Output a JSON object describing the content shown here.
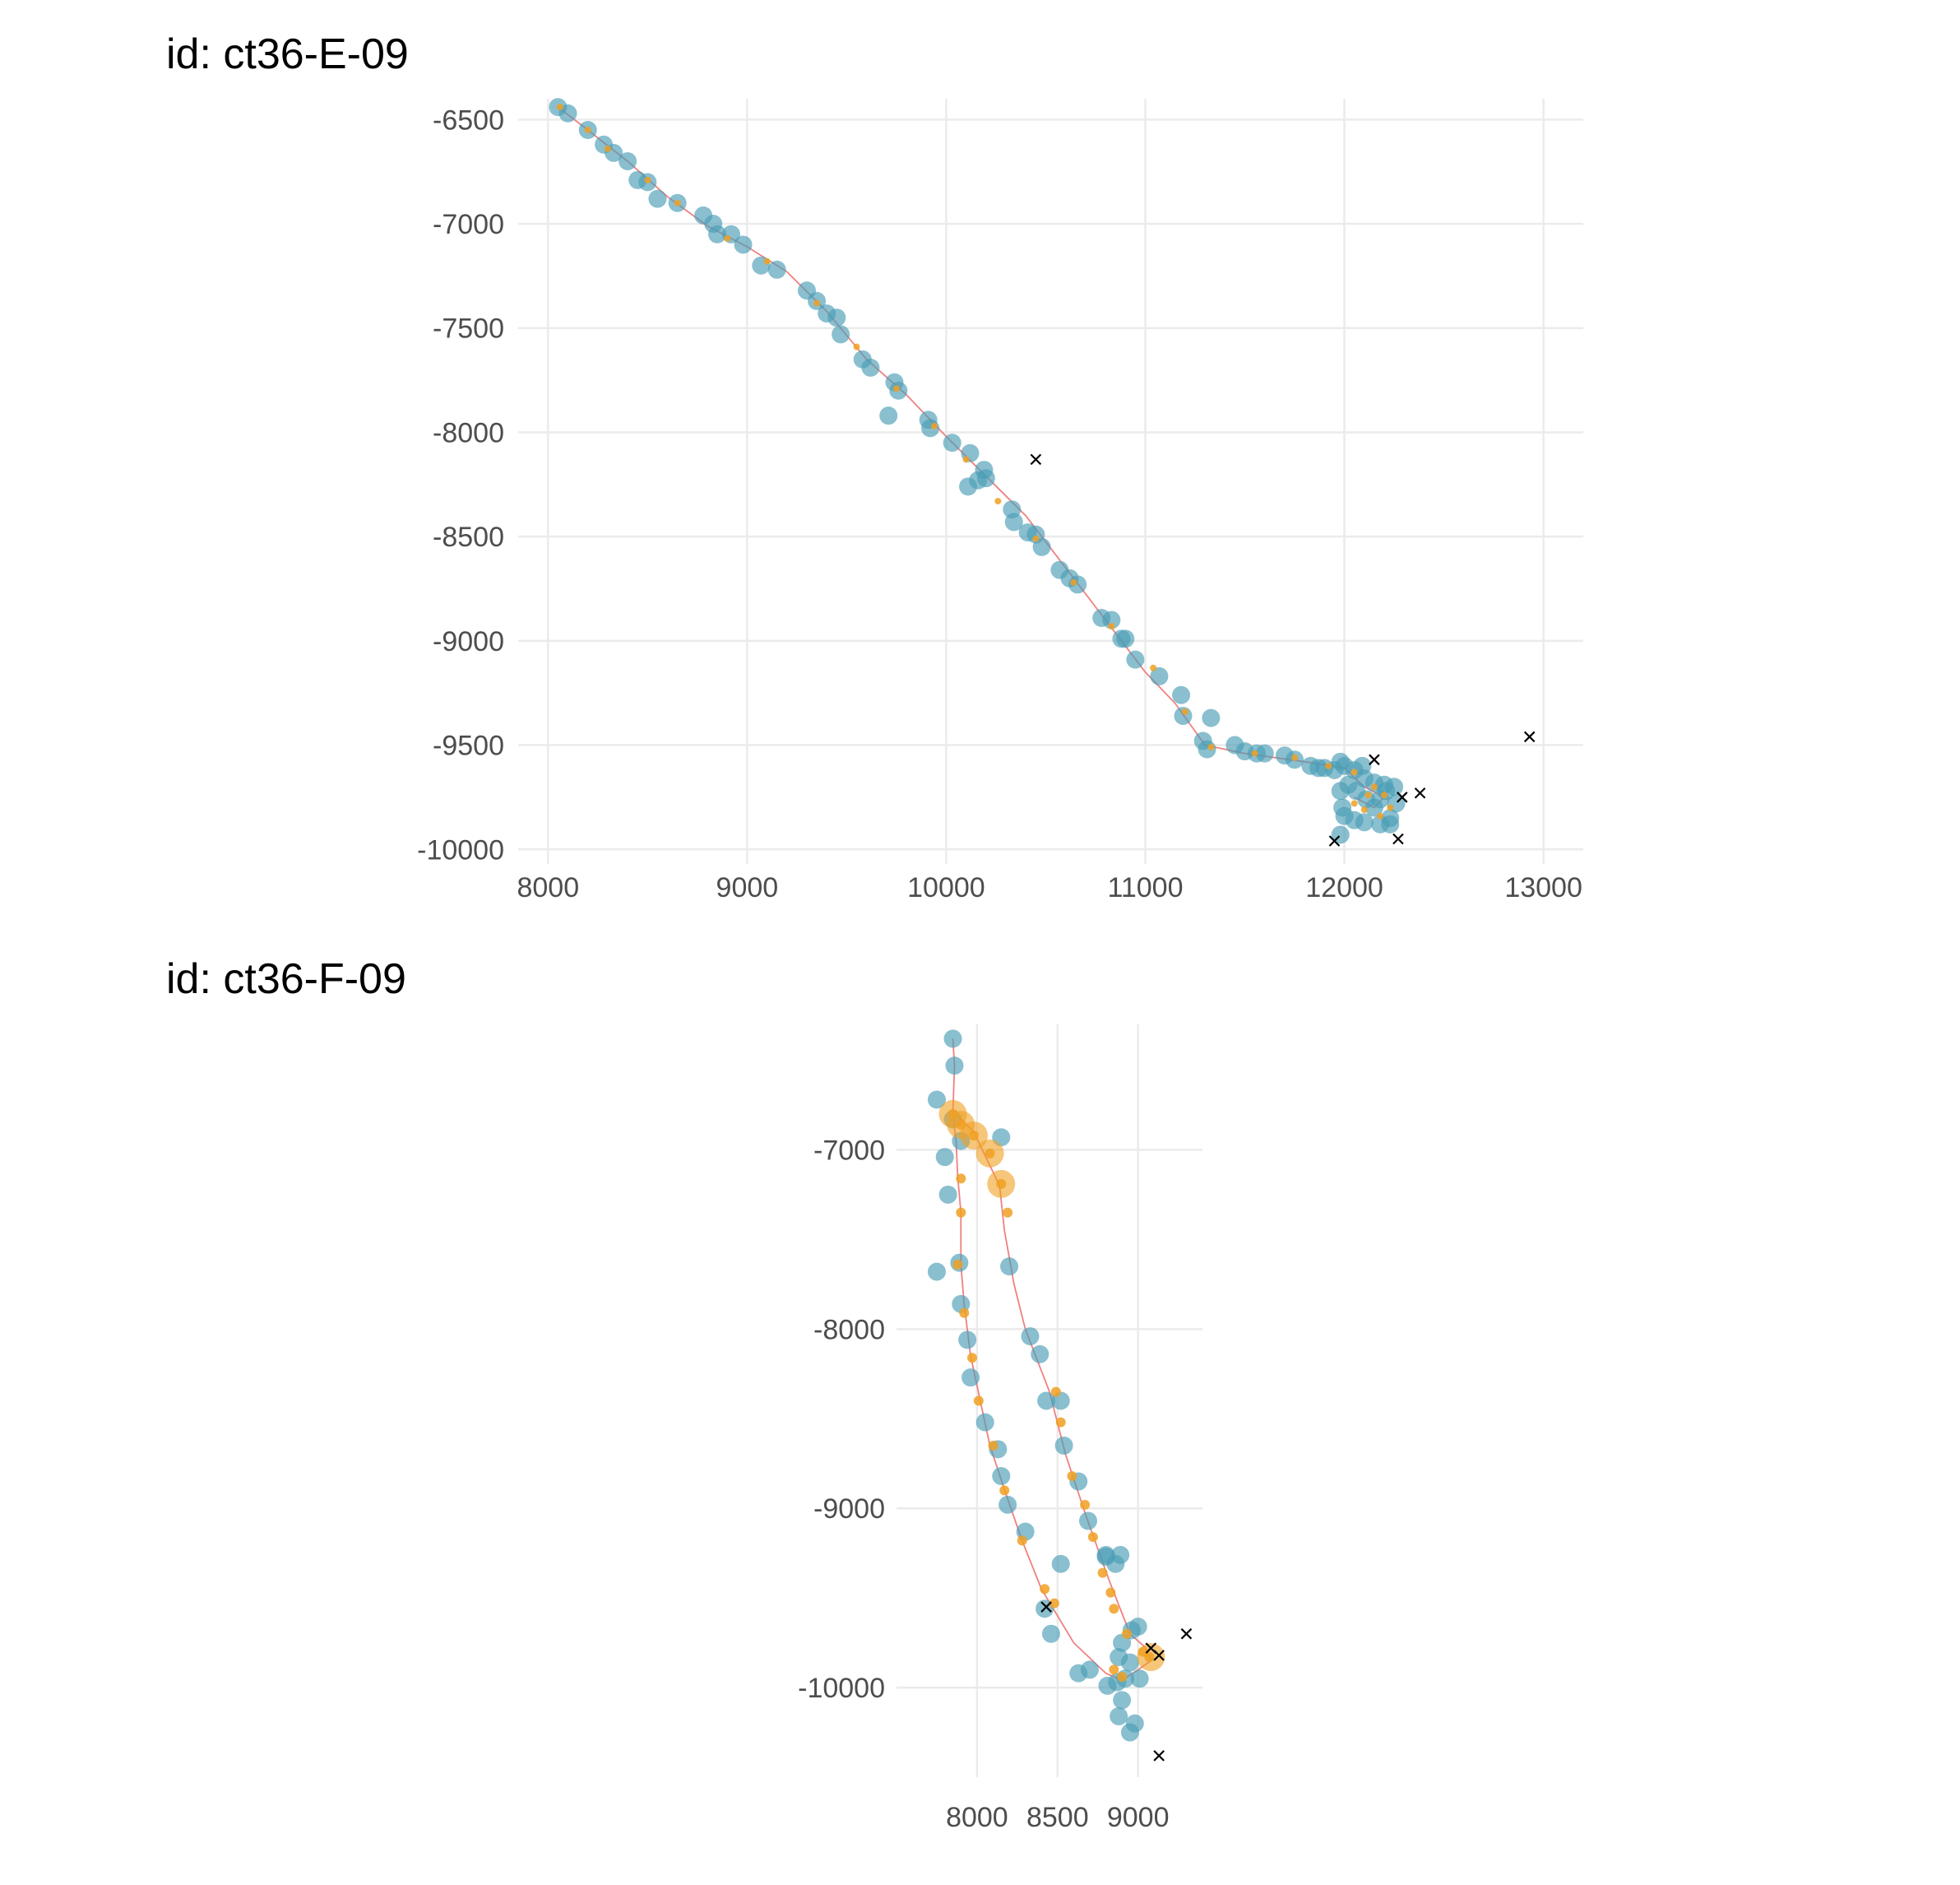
{
  "colors": {
    "background": "#ffffff",
    "grid": "#ebebeb",
    "observed_point": "#4a9db5",
    "estimated_point": "#f0a022",
    "track_line": "#f08080",
    "outlier_mark": "#000000",
    "tick_text": "#4d4d4d"
  },
  "chart_data": [
    {
      "type": "scatter",
      "title": "id: ct36-E-09",
      "xlabel": "",
      "ylabel": "",
      "xlim": [
        7850,
        13200
      ],
      "ylim": [
        -10070,
        -6400
      ],
      "x_ticks": [
        "8000",
        "9000",
        "10000",
        "11000",
        "12000",
        "13000"
      ],
      "y_ticks": [
        "-6500",
        "-7000",
        "-7500",
        "-8000",
        "-8500",
        "-9000",
        "-9500",
        "-10000"
      ],
      "grid": true,
      "legend": "none",
      "track": [
        [
          8050,
          -6440
        ],
        [
          8200,
          -6550
        ],
        [
          8400,
          -6700
        ],
        [
          8600,
          -6870
        ],
        [
          8800,
          -7010
        ],
        [
          9000,
          -7110
        ],
        [
          9200,
          -7230
        ],
        [
          9400,
          -7420
        ],
        [
          9600,
          -7650
        ],
        [
          9800,
          -7820
        ],
        [
          10000,
          -8020
        ],
        [
          10200,
          -8210
        ],
        [
          10400,
          -8400
        ],
        [
          10600,
          -8650
        ],
        [
          10800,
          -8900
        ],
        [
          11000,
          -9150
        ],
        [
          11150,
          -9300
        ],
        [
          11300,
          -9500
        ],
        [
          11500,
          -9540
        ],
        [
          11800,
          -9580
        ],
        [
          12000,
          -9610
        ],
        [
          12100,
          -9700
        ],
        [
          12200,
          -9750
        ],
        [
          12150,
          -9800
        ],
        [
          12050,
          -9750
        ]
      ],
      "observed": [
        [
          8050,
          -6440
        ],
        [
          8100,
          -6470
        ],
        [
          8200,
          -6550
        ],
        [
          8280,
          -6620
        ],
        [
          8330,
          -6660
        ],
        [
          8400,
          -6700
        ],
        [
          8450,
          -6790
        ],
        [
          8500,
          -6800
        ],
        [
          8550,
          -6880
        ],
        [
          8650,
          -6900
        ],
        [
          8780,
          -6960
        ],
        [
          8830,
          -7000
        ],
        [
          8850,
          -7050
        ],
        [
          8920,
          -7050
        ],
        [
          8980,
          -7100
        ],
        [
          9070,
          -7200
        ],
        [
          9150,
          -7220
        ],
        [
          9300,
          -7320
        ],
        [
          9350,
          -7370
        ],
        [
          9400,
          -7430
        ],
        [
          9450,
          -7450
        ],
        [
          9470,
          -7530
        ],
        [
          9580,
          -7650
        ],
        [
          9620,
          -7690
        ],
        [
          9710,
          -7920
        ],
        [
          9740,
          -7760
        ],
        [
          9760,
          -7800
        ],
        [
          9910,
          -7940
        ],
        [
          9920,
          -7980
        ],
        [
          10030,
          -8050
        ],
        [
          10120,
          -8100
        ],
        [
          10110,
          -8260
        ],
        [
          10160,
          -8230
        ],
        [
          10190,
          -8180
        ],
        [
          10200,
          -8220
        ],
        [
          10330,
          -8370
        ],
        [
          10340,
          -8430
        ],
        [
          10410,
          -8480
        ],
        [
          10450,
          -8490
        ],
        [
          10480,
          -8550
        ],
        [
          10570,
          -8660
        ],
        [
          10620,
          -8700
        ],
        [
          10660,
          -8730
        ],
        [
          10780,
          -8890
        ],
        [
          10830,
          -8900
        ],
        [
          10880,
          -8990
        ],
        [
          10900,
          -8990
        ],
        [
          10950,
          -9090
        ],
        [
          11070,
          -9170
        ],
        [
          11180,
          -9260
        ],
        [
          11190,
          -9360
        ],
        [
          11290,
          -9480
        ],
        [
          11310,
          -9520
        ],
        [
          11330,
          -9370
        ],
        [
          11450,
          -9500
        ],
        [
          11500,
          -9530
        ],
        [
          11560,
          -9540
        ],
        [
          11600,
          -9540
        ],
        [
          11700,
          -9550
        ],
        [
          11750,
          -9570
        ],
        [
          11830,
          -9600
        ],
        [
          11870,
          -9610
        ],
        [
          11900,
          -9610
        ],
        [
          11950,
          -9620
        ],
        [
          11980,
          -9580
        ],
        [
          12000,
          -9600
        ],
        [
          12050,
          -9620
        ],
        [
          12090,
          -9600
        ],
        [
          12100,
          -9660
        ],
        [
          12150,
          -9680
        ],
        [
          12200,
          -9690
        ],
        [
          12250,
          -9700
        ],
        [
          12260,
          -9780
        ],
        [
          12230,
          -9850
        ],
        [
          12180,
          -9880
        ],
        [
          12100,
          -9870
        ],
        [
          12050,
          -9860
        ],
        [
          12000,
          -9840
        ],
        [
          11990,
          -9800
        ],
        [
          11980,
          -9720
        ],
        [
          12020,
          -9690
        ],
        [
          12060,
          -9720
        ],
        [
          12110,
          -9760
        ],
        [
          12150,
          -9800
        ],
        [
          12180,
          -9760
        ],
        [
          12210,
          -9720
        ],
        [
          11980,
          -9930
        ],
        [
          12230,
          -9880
        ]
      ],
      "estimated": [
        [
          8060,
          -6440
        ],
        [
          8200,
          -6550
        ],
        [
          8300,
          -6640
        ],
        [
          8500,
          -6790
        ],
        [
          8650,
          -6900
        ],
        [
          8900,
          -7070
        ],
        [
          9100,
          -7180
        ],
        [
          9350,
          -7380
        ],
        [
          9550,
          -7590
        ],
        [
          9750,
          -7790
        ],
        [
          9940,
          -7970
        ],
        [
          10100,
          -8130
        ],
        [
          10260,
          -8330
        ],
        [
          10450,
          -8510
        ],
        [
          10640,
          -8720
        ],
        [
          10830,
          -8930
        ],
        [
          11040,
          -9130
        ],
        [
          11200,
          -9340
        ],
        [
          11330,
          -9510
        ],
        [
          11550,
          -9540
        ],
        [
          11750,
          -9560
        ],
        [
          11920,
          -9600
        ],
        [
          12050,
          -9630
        ],
        [
          12150,
          -9700
        ],
        [
          12200,
          -9740
        ],
        [
          12230,
          -9800
        ],
        [
          12180,
          -9840
        ],
        [
          12100,
          -9810
        ],
        [
          12050,
          -9780
        ],
        [
          12120,
          -9740
        ]
      ],
      "outliers": [
        [
          10450,
          -8130
        ],
        [
          12150,
          -9570
        ],
        [
          12380,
          -9730
        ],
        [
          12290,
          -9750
        ],
        [
          12270,
          -9950
        ],
        [
          11950,
          -9960
        ],
        [
          12930,
          -9460
        ]
      ]
    },
    {
      "type": "scatter",
      "title": "id: ct36-F-09",
      "xlabel": "",
      "ylabel": "",
      "xlim": [
        7500,
        9400
      ],
      "ylim": [
        -10500,
        -6300
      ],
      "x_ticks": [
        "8000",
        "8500",
        "9000"
      ],
      "y_ticks": [
        "-7000",
        "-8000",
        "-9000",
        "-10000"
      ],
      "grid": true,
      "legend": "none",
      "track": [
        [
          7850,
          -6380
        ],
        [
          7860,
          -6530
        ],
        [
          7850,
          -6800
        ],
        [
          7870,
          -6950
        ],
        [
          7880,
          -7150
        ],
        [
          7900,
          -7350
        ],
        [
          7900,
          -7640
        ],
        [
          7920,
          -7860
        ],
        [
          7960,
          -8150
        ],
        [
          8020,
          -8400
        ],
        [
          8080,
          -8650
        ],
        [
          8180,
          -8920
        ],
        [
          8280,
          -9180
        ],
        [
          8400,
          -9450
        ],
        [
          8600,
          -9750
        ],
        [
          8800,
          -9920
        ],
        [
          8900,
          -9960
        ],
        [
          9000,
          -9900
        ],
        [
          9080,
          -9850
        ],
        [
          9050,
          -9780
        ],
        [
          8950,
          -9700
        ],
        [
          8820,
          -9400
        ],
        [
          8680,
          -9050
        ],
        [
          8550,
          -8700
        ],
        [
          8450,
          -8350
        ],
        [
          8300,
          -8000
        ],
        [
          8230,
          -7750
        ],
        [
          8170,
          -7450
        ],
        [
          8140,
          -7200
        ],
        [
          8060,
          -7050
        ],
        [
          7980,
          -6900
        ],
        [
          7870,
          -6800
        ]
      ],
      "observed": [
        [
          7850,
          -6380
        ],
        [
          7860,
          -6530
        ],
        [
          7750,
          -6720
        ],
        [
          7850,
          -6830
        ],
        [
          7800,
          -7040
        ],
        [
          7900,
          -6950
        ],
        [
          8150,
          -6930
        ],
        [
          7820,
          -7250
        ],
        [
          7750,
          -7680
        ],
        [
          7890,
          -7630
        ],
        [
          7900,
          -7860
        ],
        [
          7940,
          -8060
        ],
        [
          7960,
          -8270
        ],
        [
          8050,
          -8520
        ],
        [
          8130,
          -8670
        ],
        [
          8150,
          -8820
        ],
        [
          8190,
          -8980
        ],
        [
          8300,
          -9130
        ],
        [
          8420,
          -9560
        ],
        [
          8460,
          -9700
        ],
        [
          8520,
          -9310
        ],
        [
          8630,
          -9920
        ],
        [
          8700,
          -9900
        ],
        [
          8810,
          -9990
        ],
        [
          8870,
          -9970
        ],
        [
          8900,
          -10070
        ],
        [
          8880,
          -10160
        ],
        [
          8950,
          -10250
        ],
        [
          8980,
          -10200
        ],
        [
          8950,
          -9860
        ],
        [
          8900,
          -9750
        ],
        [
          8960,
          -9680
        ],
        [
          9000,
          -9660
        ],
        [
          8880,
          -9830
        ],
        [
          8920,
          -9950
        ],
        [
          9010,
          -9950
        ],
        [
          8330,
          -8040
        ],
        [
          8390,
          -8140
        ],
        [
          8430,
          -8400
        ],
        [
          8520,
          -8400
        ],
        [
          8540,
          -8650
        ],
        [
          8630,
          -8850
        ],
        [
          8690,
          -9070
        ],
        [
          8800,
          -9260
        ],
        [
          8860,
          -9310
        ],
        [
          8890,
          -9260
        ],
        [
          8800,
          -9270
        ],
        [
          8200,
          -7650
        ]
      ],
      "estimated": [
        [
          7850,
          -6800
        ],
        [
          7900,
          -6860
        ],
        [
          7980,
          -6920
        ],
        [
          8080,
          -7020
        ],
        [
          8150,
          -7190
        ],
        [
          8190,
          -7350
        ],
        [
          7900,
          -7160
        ],
        [
          7900,
          -7350
        ],
        [
          7880,
          -7640
        ],
        [
          7920,
          -7910
        ],
        [
          7970,
          -8160
        ],
        [
          8010,
          -8400
        ],
        [
          8100,
          -8650
        ],
        [
          8170,
          -8900
        ],
        [
          8280,
          -9180
        ],
        [
          8420,
          -9450
        ],
        [
          8480,
          -9530
        ],
        [
          8490,
          -8350
        ],
        [
          8520,
          -8520
        ],
        [
          8590,
          -8820
        ],
        [
          8670,
          -8980
        ],
        [
          8720,
          -9160
        ],
        [
          8780,
          -9360
        ],
        [
          8830,
          -9470
        ],
        [
          8850,
          -9560
        ],
        [
          8930,
          -9700
        ],
        [
          9030,
          -9800
        ],
        [
          9070,
          -9830
        ],
        [
          8850,
          -9900
        ],
        [
          8900,
          -9940
        ]
      ],
      "estimated_large": [
        [
          7850,
          -6800
        ],
        [
          7900,
          -6860
        ],
        [
          7980,
          -6920
        ],
        [
          8080,
          -7020
        ],
        [
          8150,
          -7190
        ],
        [
          9080,
          -9830
        ]
      ],
      "outliers": [
        [
          8430,
          -9550
        ],
        [
          9300,
          -9700
        ],
        [
          9130,
          -9820
        ],
        [
          9080,
          -9780
        ],
        [
          9130,
          -10380
        ]
      ]
    }
  ]
}
